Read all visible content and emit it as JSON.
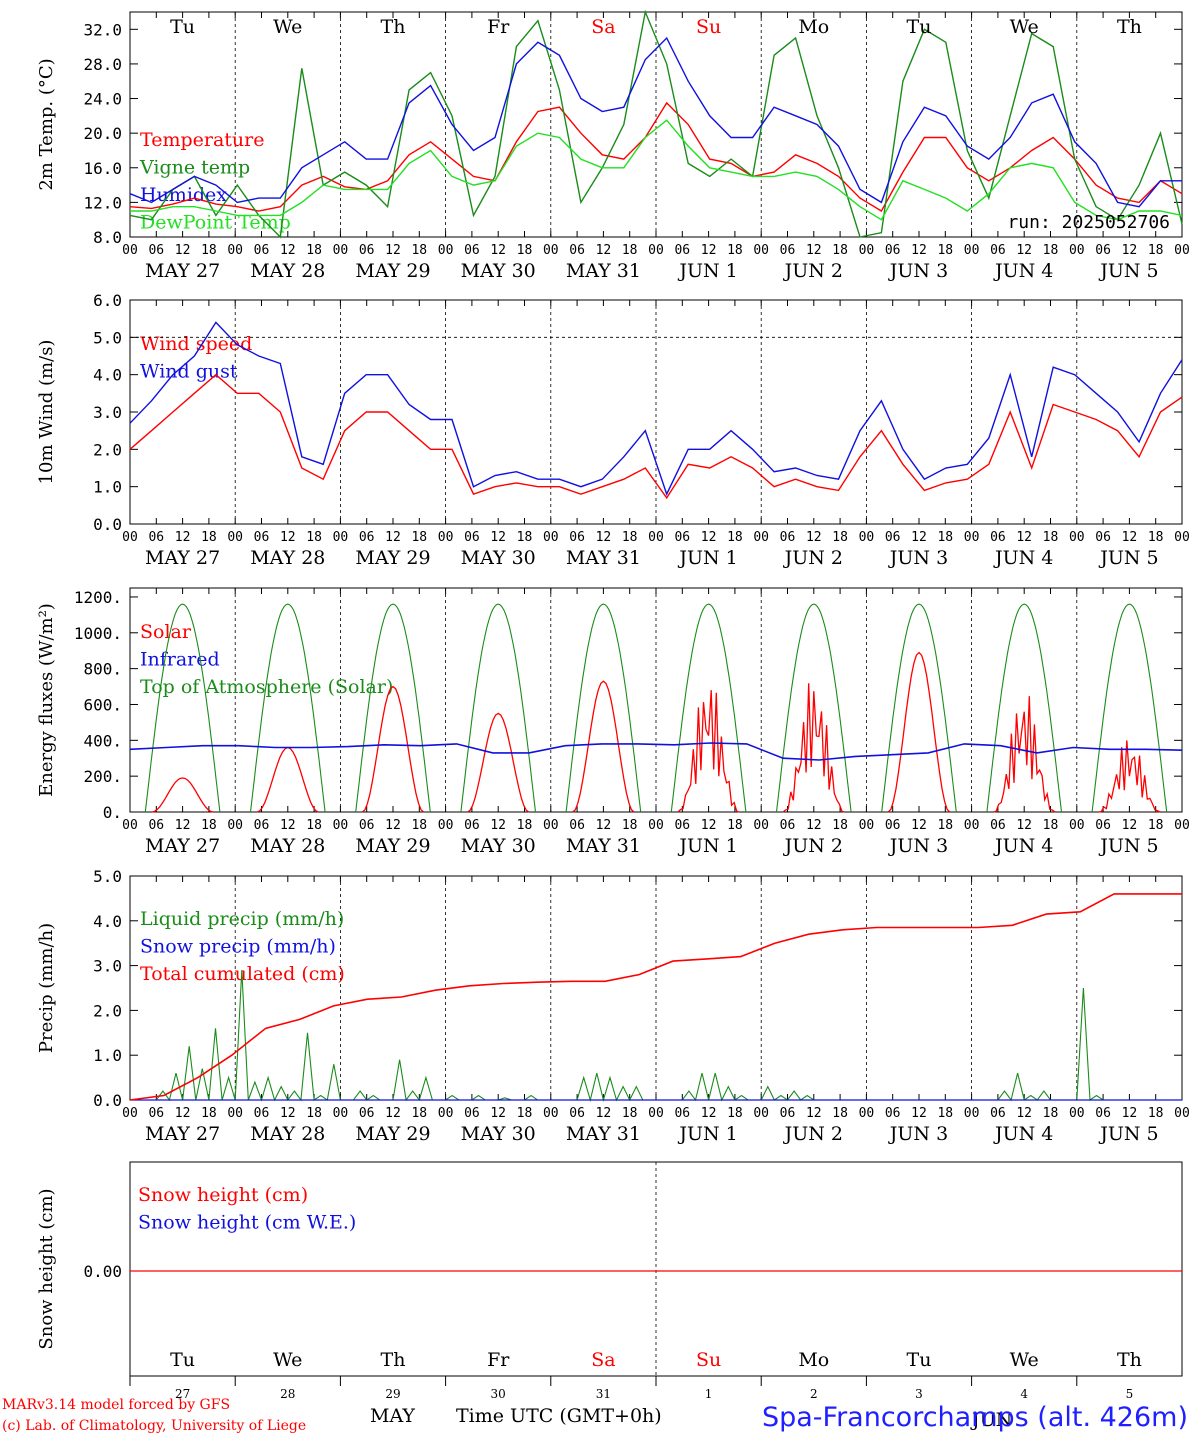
{
  "meta": {
    "run": "run: 2025052706",
    "footer_model": "MARv3.14 model forced by GFS",
    "footer_lab": "(c) Lab. of Climatology, University of Liege",
    "footer_month": "MAY",
    "footer_month2": "JUN",
    "footer_time": "Time UTC (GMT+0h)",
    "footer_site": "Spa-Francorchamps (alt. 426m)"
  },
  "days": [
    "Tu",
    "We",
    "Th",
    "Fr",
    "Sa",
    "Su",
    "Mo",
    "Tu",
    "We",
    "Th"
  ],
  "weekend_days": [
    4,
    5
  ],
  "date_labels": [
    "MAY 27",
    "MAY 28",
    "MAY 29",
    "MAY 30",
    "MAY 31",
    "JUN  1",
    "JUN  2",
    "JUN  3",
    "JUN  4",
    "JUN  5"
  ],
  "day_numbers": [
    "27",
    "28",
    "29",
    "30",
    "31",
    "1",
    "2",
    "3",
    "4",
    "5"
  ],
  "hour_ticks": [
    "00",
    "06",
    "12",
    "18"
  ],
  "colors": {
    "red": "#ff0000",
    "green": "#1a8c1a",
    "blue": "#1010e0",
    "lightgreen": "#22e022"
  },
  "chart_data": [
    {
      "type": "line",
      "ylabel": "2m Temp. (°C)",
      "ylim": [
        8,
        34
      ],
      "yticks": [
        "8.0",
        "12.0",
        "16.0",
        "20.0",
        "24.0",
        "28.0",
        "32.0"
      ],
      "series": [
        {
          "name": "Temperature",
          "color": "red",
          "values": [
            11.5,
            11.3,
            11.8,
            12.5,
            11.8,
            11.5,
            11.0,
            11.5,
            14.0,
            15.0,
            13.8,
            13.5,
            14.5,
            17.5,
            19.0,
            17.0,
            15.0,
            14.5,
            19.0,
            22.5,
            23.0,
            20.0,
            17.5,
            17.0,
            19.5,
            23.5,
            21.0,
            17.0,
            16.5,
            15.0,
            15.5,
            17.5,
            16.5,
            15.0,
            12.5,
            11.0,
            15.5,
            19.5,
            19.5,
            16.0,
            14.5,
            16.0,
            18.0,
            19.5,
            17.0,
            14.0,
            12.5,
            12.0,
            14.5,
            13.0
          ]
        },
        {
          "name": "Vigne temp",
          "color": "green",
          "values": [
            10.5,
            10.0,
            13.5,
            15.0,
            10.5,
            14.0,
            10.5,
            8.0,
            27.5,
            14.0,
            15.5,
            14.0,
            11.5,
            25.0,
            27.0,
            22.0,
            10.5,
            15.0,
            30.0,
            33.0,
            25.0,
            12.0,
            16.0,
            21.0,
            34.0,
            28.0,
            16.5,
            15.0,
            17.0,
            15.0,
            29.0,
            31.0,
            22.0,
            16.0,
            8.0,
            8.5,
            26.0,
            32.0,
            30.5,
            18.0,
            12.5,
            22.0,
            31.5,
            30.0,
            17.0,
            11.5,
            10.0,
            14.0,
            20.0,
            9.5
          ]
        },
        {
          "name": "Humidex",
          "color": "blue",
          "values": [
            13.0,
            12.0,
            13.5,
            15.0,
            14.0,
            12.0,
            12.5,
            12.5,
            16.0,
            17.5,
            19.0,
            17.0,
            17.0,
            23.5,
            25.5,
            21.0,
            18.0,
            19.5,
            28.0,
            30.5,
            29.0,
            24.0,
            22.5,
            23.0,
            28.5,
            31.0,
            26.0,
            22.0,
            19.5,
            19.5,
            23.0,
            22.0,
            21.0,
            18.5,
            13.5,
            12.0,
            19.0,
            23.0,
            22.0,
            18.5,
            17.0,
            19.5,
            23.5,
            24.5,
            19.0,
            16.5,
            12.0,
            11.5,
            14.5,
            14.5
          ]
        },
        {
          "name": "DewPoint Temp",
          "color": "lightgreen",
          "values": [
            11.0,
            11.0,
            11.5,
            11.5,
            11.0,
            10.5,
            10.5,
            10.5,
            12.0,
            14.0,
            13.5,
            13.5,
            13.5,
            16.5,
            18.0,
            15.0,
            14.0,
            14.5,
            18.5,
            20.0,
            19.5,
            17.0,
            16.0,
            16.0,
            19.5,
            21.5,
            18.5,
            16.0,
            15.5,
            15.0,
            15.0,
            15.5,
            15.0,
            13.5,
            11.5,
            10.0,
            14.5,
            13.5,
            12.5,
            11.0,
            13.0,
            16.0,
            16.5,
            16.0,
            12.0,
            10.5,
            10.0,
            11.0,
            11.0,
            10.5
          ]
        }
      ]
    },
    {
      "type": "line",
      "ylabel": "10m Wind (m/s)",
      "ylim": [
        0,
        6
      ],
      "yticks": [
        "0.0",
        "1.0",
        "2.0",
        "3.0",
        "4.0",
        "5.0",
        "6.0"
      ],
      "series": [
        {
          "name": "Wind speed",
          "color": "red",
          "values": [
            2.0,
            2.5,
            3.0,
            3.5,
            4.0,
            3.5,
            3.5,
            3.0,
            1.5,
            1.2,
            2.5,
            3.0,
            3.0,
            2.5,
            2.0,
            2.0,
            0.8,
            1.0,
            1.1,
            1.0,
            1.0,
            0.8,
            1.0,
            1.2,
            1.5,
            0.7,
            1.6,
            1.5,
            1.8,
            1.5,
            1.0,
            1.2,
            1.0,
            0.9,
            1.8,
            2.5,
            1.6,
            0.9,
            1.1,
            1.2,
            1.6,
            3.0,
            1.5,
            3.2,
            3.0,
            2.8,
            2.5,
            1.8,
            3.0,
            3.4
          ]
        },
        {
          "name": "Wind gust",
          "color": "blue",
          "values": [
            2.7,
            3.3,
            4.0,
            4.5,
            5.4,
            4.8,
            4.5,
            4.3,
            1.8,
            1.6,
            3.5,
            4.0,
            4.0,
            3.2,
            2.8,
            2.8,
            1.0,
            1.3,
            1.4,
            1.2,
            1.2,
            1.0,
            1.2,
            1.8,
            2.5,
            0.8,
            2.0,
            2.0,
            2.5,
            2.0,
            1.4,
            1.5,
            1.3,
            1.2,
            2.5,
            3.3,
            2.0,
            1.2,
            1.5,
            1.6,
            2.3,
            4.0,
            1.8,
            4.2,
            4.0,
            3.5,
            3.0,
            2.2,
            3.5,
            4.4
          ]
        }
      ]
    },
    {
      "type": "line",
      "ylabel": "Energy fluxes (W/m²)",
      "ylim": [
        0,
        1250
      ],
      "yticks": [
        "0.",
        "200.",
        "400.",
        "600.",
        "800.",
        "1000.",
        "1200."
      ],
      "series": [
        {
          "name": "Solar",
          "color": "red",
          "peaks": [
            190,
            360,
            700,
            550,
            730,
            780,
            770,
            890,
            700,
            430
          ]
        },
        {
          "name": "Infrared",
          "color": "blue",
          "values": [
            350,
            360,
            370,
            370,
            360,
            360,
            365,
            375,
            370,
            380,
            330,
            330,
            370,
            380,
            380,
            375,
            385,
            380,
            300,
            290,
            310,
            320,
            330,
            380,
            370,
            330,
            360,
            350,
            350,
            345
          ]
        },
        {
          "name": "Top of Atmosphere (Solar)",
          "color": "green",
          "peak": 1160
        }
      ]
    },
    {
      "type": "line",
      "ylabel": "Precip (mm/h)",
      "ylim": [
        0,
        5
      ],
      "yticks": [
        "0.0",
        "1.0",
        "2.0",
        "3.0",
        "4.0",
        "5.0"
      ],
      "series": [
        {
          "name": "Liquid precip (mm/h)",
          "color": "green"
        },
        {
          "name": "Snow precip (mm/h)",
          "color": "blue"
        },
        {
          "name": "Total cumulated (cm)",
          "color": "red",
          "values": [
            0.0,
            0.1,
            0.5,
            1.0,
            1.6,
            1.8,
            2.1,
            2.25,
            2.3,
            2.45,
            2.55,
            2.6,
            2.63,
            2.65,
            2.65,
            2.8,
            3.1,
            3.15,
            3.2,
            3.5,
            3.7,
            3.8,
            3.85,
            3.85,
            3.85,
            3.85,
            3.9,
            4.15,
            4.2,
            4.6,
            4.6,
            4.6
          ]
        }
      ]
    },
    {
      "type": "line",
      "ylabel": "Snow height (cm)",
      "yticks": [
        "0.00"
      ],
      "series": [
        {
          "name": "Snow height (cm)",
          "color": "red"
        },
        {
          "name": "Snow height (cm W.E.)",
          "color": "blue"
        }
      ]
    }
  ]
}
